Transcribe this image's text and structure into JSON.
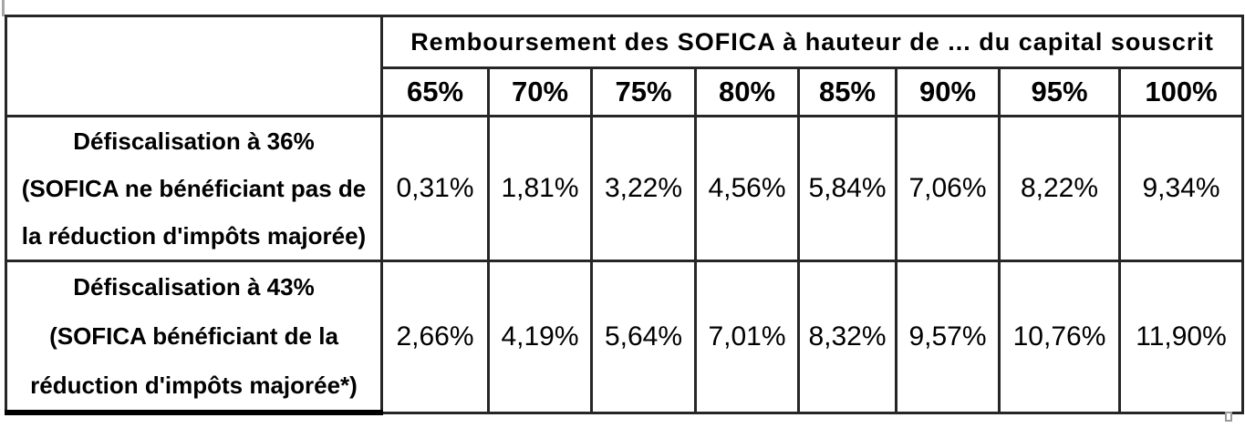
{
  "table": {
    "header_title": "Remboursement des SOFICA à hauteur de ... du capital souscrit",
    "columns": [
      "65%",
      "70%",
      "75%",
      "80%",
      "85%",
      "90%",
      "95%",
      "100%"
    ],
    "rows": [
      {
        "label_lines": [
          "Défiscalisation à 36%",
          "(SOFICA ne bénéficiant pas de",
          "la réduction d'impôts majorée)"
        ],
        "values": [
          "0,31%",
          "1,81%",
          "3,22%",
          "4,56%",
          "5,84%",
          "7,06%",
          "8,22%",
          "9,34%"
        ]
      },
      {
        "label_lines": [
          "Défiscalisation à 43%",
          "(SOFICA  bénéficiant de la",
          "réduction d'impôts majorée*)"
        ],
        "values": [
          "2,66%",
          "4,19%",
          "5,64%",
          "7,01%",
          "8,32%",
          "9,57%",
          "10,76%",
          "11,90%"
        ]
      }
    ]
  }
}
